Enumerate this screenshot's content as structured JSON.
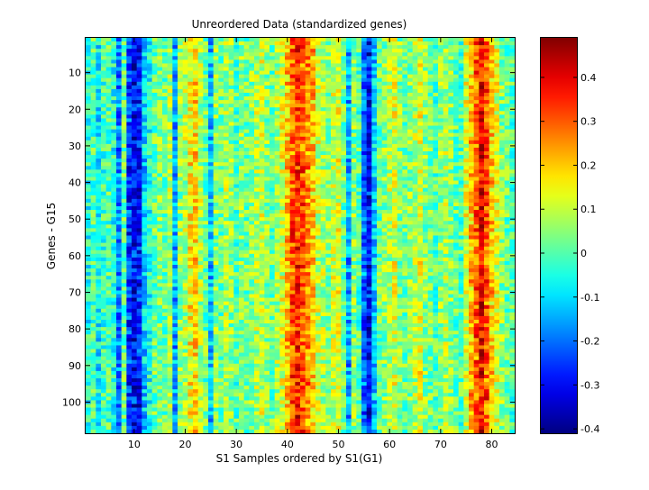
{
  "chart_data": {
    "type": "heatmap",
    "title": "Unreordered Data (standardized genes)",
    "xlabel": "S1 Samples ordered by S1(G1)",
    "ylabel": "Genes - G15",
    "n_cols": 84,
    "n_rows": 108,
    "xlim": [
      0.5,
      84.5
    ],
    "ylim": [
      0.5,
      108.5
    ],
    "xticks": [
      10,
      20,
      30,
      40,
      50,
      60,
      70,
      80
    ],
    "yticks": [
      10,
      20,
      30,
      40,
      50,
      60,
      70,
      80,
      90,
      100
    ],
    "colormap": "jet",
    "clim": [
      -0.41,
      0.49
    ],
    "colorbar_ticks": [
      -0.4,
      -0.3,
      -0.2,
      -0.1,
      0,
      0.1,
      0.2,
      0.3,
      0.4
    ],
    "colorbar_tick_labels": [
      "-0.4",
      "-0.3",
      "-0.2",
      "-0.1",
      "0",
      "0.1",
      "0.2",
      "0.3",
      "0.4"
    ],
    "column_means": [
      -0.05,
      0.0,
      -0.08,
      -0.02,
      0.0,
      -0.05,
      -0.18,
      0.02,
      -0.25,
      -0.3,
      -0.28,
      -0.12,
      -0.05,
      0.02,
      0.04,
      0.02,
      0.08,
      -0.15,
      0.05,
      0.08,
      0.15,
      0.18,
      0.08,
      0.02,
      -0.12,
      0.05,
      0.02,
      0.08,
      0.05,
      0.0,
      0.05,
      0.02,
      0.05,
      0.08,
      0.1,
      0.05,
      0.02,
      0.08,
      0.12,
      0.2,
      0.3,
      0.35,
      0.3,
      0.25,
      0.2,
      0.1,
      0.08,
      0.05,
      0.1,
      0.12,
      0.02,
      -0.15,
      0.05,
      0.0,
      -0.2,
      -0.3,
      -0.12,
      0.02,
      0.05,
      0.08,
      0.12,
      0.05,
      0.02,
      0.05,
      0.08,
      0.12,
      0.05,
      0.02,
      0.0,
      0.05,
      0.08,
      0.05,
      0.02,
      0.0,
      0.12,
      0.22,
      0.3,
      0.38,
      0.3,
      0.2,
      0.12,
      0.05,
      0.02,
      0.0
    ]
  }
}
